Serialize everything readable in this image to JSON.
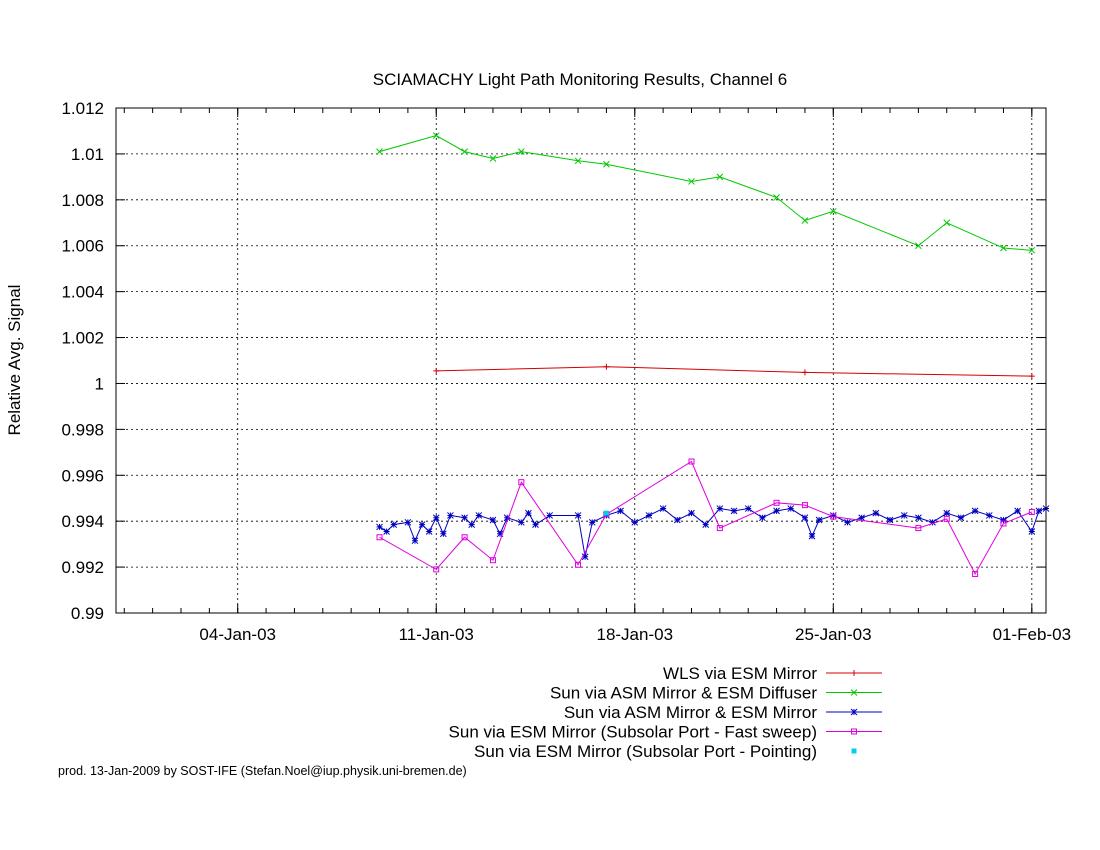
{
  "chart_data": {
    "type": "line",
    "title": "SCIAMACHY Light Path Monitoring Results, Channel 6",
    "xlabel": "",
    "ylabel": "Relative Avg. Signal",
    "x_axis_type": "date",
    "xlim": [
      "2002-12-30T17:00",
      "2003-02-01T12:00"
    ],
    "ylim": [
      0.99,
      1.012
    ],
    "x_ticks": [
      "04-Jan-03",
      "11-Jan-03",
      "18-Jan-03",
      "25-Jan-03",
      "01-Feb-03"
    ],
    "x_tick_values": [
      "2003-01-04",
      "2003-01-11",
      "2003-01-18",
      "2003-01-25",
      "2003-02-01"
    ],
    "y_ticks": [
      "0.99",
      "0.992",
      "0.994",
      "0.996",
      "0.998",
      "1",
      "1.002",
      "1.004",
      "1.006",
      "1.008",
      "1.01",
      "1.012"
    ],
    "y_tick_values": [
      0.99,
      0.992,
      0.994,
      0.996,
      0.998,
      1.0,
      1.002,
      1.004,
      1.006,
      1.008,
      1.01,
      1.012
    ],
    "grid": true,
    "legend_position": "bottom-right",
    "series": [
      {
        "name": "WLS via ESM Mirror",
        "color": "#d40000",
        "marker": "plus",
        "line": true,
        "points": [
          [
            "2003-01-11",
            1.00055
          ],
          [
            "2003-01-17",
            1.00073
          ],
          [
            "2003-01-24",
            1.00048
          ],
          [
            "2003-02-01",
            1.00032
          ]
        ]
      },
      {
        "name": "Sun via ASM Mirror & ESM Diffuser",
        "color": "#00c800",
        "marker": "x",
        "line": true,
        "points": [
          [
            "2003-01-09",
            1.0101
          ],
          [
            "2003-01-11",
            1.0108
          ],
          [
            "2003-01-12",
            1.0101
          ],
          [
            "2003-01-13",
            1.0098
          ],
          [
            "2003-01-14",
            1.0101
          ],
          [
            "2003-01-16",
            1.0097
          ],
          [
            "2003-01-17",
            1.00955
          ],
          [
            "2003-01-20",
            1.0088
          ],
          [
            "2003-01-21",
            1.009
          ],
          [
            "2003-01-23",
            1.0081
          ],
          [
            "2003-01-24",
            1.0071
          ],
          [
            "2003-01-25",
            1.0075
          ],
          [
            "2003-01-28",
            1.006
          ],
          [
            "2003-01-29",
            1.007
          ],
          [
            "2003-01-31",
            1.0059
          ],
          [
            "2003-02-01",
            1.0058
          ]
        ]
      },
      {
        "name": "Sun via ASM Mirror & ESM Mirror",
        "color": "#0000c0",
        "marker": "star",
        "line": true,
        "points": [
          [
            "2003-01-09T00:00",
            0.99375
          ],
          [
            "2003-01-09T06:00",
            0.99355
          ],
          [
            "2003-01-09T12:00",
            0.99385
          ],
          [
            "2003-01-10T00:00",
            0.99395
          ],
          [
            "2003-01-10T06:00",
            0.99315
          ],
          [
            "2003-01-10T12:00",
            0.99385
          ],
          [
            "2003-01-10T18:00",
            0.99355
          ],
          [
            "2003-01-11T00:00",
            0.99415
          ],
          [
            "2003-01-11T06:00",
            0.99345
          ],
          [
            "2003-01-11T12:00",
            0.99425
          ],
          [
            "2003-01-12T00:00",
            0.99415
          ],
          [
            "2003-01-12T06:00",
            0.99385
          ],
          [
            "2003-01-12T12:00",
            0.99425
          ],
          [
            "2003-01-13T00:00",
            0.99405
          ],
          [
            "2003-01-13T06:00",
            0.99345
          ],
          [
            "2003-01-13T12:00",
            0.99415
          ],
          [
            "2003-01-14T00:00",
            0.99395
          ],
          [
            "2003-01-14T06:00",
            0.99435
          ],
          [
            "2003-01-14T12:00",
            0.99385
          ],
          [
            "2003-01-15T00:00",
            0.99425
          ],
          [
            "2003-01-16T00:00",
            0.99425
          ],
          [
            "2003-01-16T06:00",
            0.99245
          ],
          [
            "2003-01-16T12:00",
            0.99395
          ],
          [
            "2003-01-17T00:00",
            0.99425
          ],
          [
            "2003-01-17T12:00",
            0.99445
          ],
          [
            "2003-01-18T00:00",
            0.99395
          ],
          [
            "2003-01-18T12:00",
            0.99425
          ],
          [
            "2003-01-19T00:00",
            0.99455
          ],
          [
            "2003-01-19T12:00",
            0.99405
          ],
          [
            "2003-01-20T00:00",
            0.99435
          ],
          [
            "2003-01-20T12:00",
            0.99385
          ],
          [
            "2003-01-21T00:00",
            0.99455
          ],
          [
            "2003-01-21T12:00",
            0.99445
          ],
          [
            "2003-01-22T00:00",
            0.99455
          ],
          [
            "2003-01-22T12:00",
            0.99415
          ],
          [
            "2003-01-23T00:00",
            0.99445
          ],
          [
            "2003-01-23T12:00",
            0.99455
          ],
          [
            "2003-01-24T00:00",
            0.99415
          ],
          [
            "2003-01-24T06:00",
            0.99335
          ],
          [
            "2003-01-24T12:00",
            0.99405
          ],
          [
            "2003-01-25T00:00",
            0.99425
          ],
          [
            "2003-01-25T12:00",
            0.99395
          ],
          [
            "2003-01-26T00:00",
            0.99415
          ],
          [
            "2003-01-26T12:00",
            0.99435
          ],
          [
            "2003-01-27T00:00",
            0.99405
          ],
          [
            "2003-01-27T12:00",
            0.99425
          ],
          [
            "2003-01-28T00:00",
            0.99415
          ],
          [
            "2003-01-28T12:00",
            0.99395
          ],
          [
            "2003-01-29T00:00",
            0.99435
          ],
          [
            "2003-01-29T12:00",
            0.99415
          ],
          [
            "2003-01-30T00:00",
            0.99445
          ],
          [
            "2003-01-30T12:00",
            0.99425
          ],
          [
            "2003-01-31T00:00",
            0.99405
          ],
          [
            "2003-01-31T12:00",
            0.99445
          ],
          [
            "2003-02-01T00:00",
            0.99355
          ],
          [
            "2003-02-01T06:00",
            0.99445
          ],
          [
            "2003-02-01T12:00",
            0.99455
          ]
        ]
      },
      {
        "name": "Sun via ESM Mirror (Subsolar Port - Fast sweep)",
        "color": "#e000e0",
        "marker": "square",
        "line": true,
        "points": [
          [
            "2003-01-09",
            0.9933
          ],
          [
            "2003-01-11",
            0.9919
          ],
          [
            "2003-01-12",
            0.9933
          ],
          [
            "2003-01-13",
            0.9923
          ],
          [
            "2003-01-14",
            0.9957
          ],
          [
            "2003-01-16",
            0.9921
          ],
          [
            "2003-01-17",
            0.9943
          ],
          [
            "2003-01-20",
            0.9966
          ],
          [
            "2003-01-21",
            0.9937
          ],
          [
            "2003-01-23",
            0.9948
          ],
          [
            "2003-01-24",
            0.9947
          ],
          [
            "2003-01-25",
            0.9942
          ],
          [
            "2003-01-28",
            0.9937
          ],
          [
            "2003-01-29",
            0.9941
          ],
          [
            "2003-01-30",
            0.9917
          ],
          [
            "2003-01-31",
            0.9939
          ],
          [
            "2003-02-01",
            0.9944
          ]
        ]
      },
      {
        "name": "Sun via ESM Mirror (Subsolar Port - Pointing)",
        "color": "#00d0e8",
        "marker": "dot",
        "line": false,
        "points": [
          [
            "2003-01-17",
            0.99435
          ]
        ]
      }
    ]
  },
  "credit": "prod. 13-Jan-2009 by SOST-IFE (Stefan.Noel@iup.physik.uni-bremen.de)"
}
